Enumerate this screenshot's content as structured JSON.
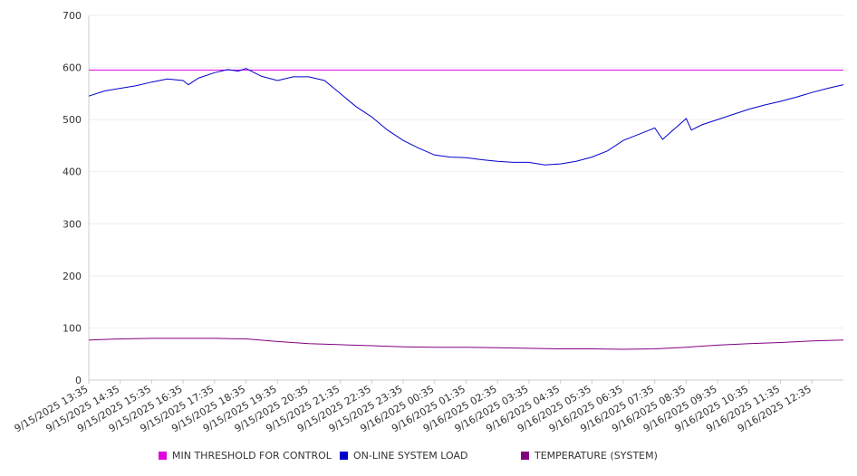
{
  "chart_data": {
    "type": "line",
    "title": "",
    "xlabel": "",
    "ylabel": "",
    "ylim": [
      0,
      700
    ],
    "yticks": [
      0,
      100,
      200,
      300,
      400,
      500,
      600,
      700
    ],
    "grid": true,
    "legend_position": "bottom",
    "x_tick_labels": [
      "9/15/2025 13:35",
      "9/15/2025 14:35",
      "9/15/2025 15:35",
      "9/15/2025 16:35",
      "9/15/2025 17:35",
      "9/15/2025 18:35",
      "9/15/2025 19:35",
      "9/15/2025 20:35",
      "9/15/2025 21:35",
      "9/15/2025 22:35",
      "9/15/2025 23:35",
      "9/16/2025 00:35",
      "9/16/2025 01:35",
      "9/16/2025 02:35",
      "9/16/2025 03:35",
      "9/16/2025 04:35",
      "9/16/2025 05:35",
      "9/16/2025 06:35",
      "9/16/2025 07:35",
      "9/16/2025 08:35",
      "9/16/2025 09:35",
      "9/16/2025 10:35",
      "9/16/2025 11:35",
      "9/16/2025 12:35"
    ],
    "x_start": "9/15/2025 13:35",
    "x_end": "9/16/2025 13:35",
    "series": [
      {
        "name": "MIN THRESHOLD FOR CONTROL",
        "color": "#e000e0",
        "x": [
          "9/15/2025 13:35",
          "9/16/2025 13:35"
        ],
        "values": [
          595,
          595
        ]
      },
      {
        "name": "ON-LINE SYSTEM LOAD",
        "color": "#0000cc",
        "x": [
          "9/15/2025 13:35",
          "9/15/2025 14:05",
          "9/15/2025 14:35",
          "9/15/2025 15:05",
          "9/15/2025 15:35",
          "9/15/2025 16:05",
          "9/15/2025 16:35",
          "9/15/2025 16:45",
          "9/15/2025 17:05",
          "9/15/2025 17:35",
          "9/15/2025 18:00",
          "9/15/2025 18:20",
          "9/15/2025 18:35",
          "9/15/2025 19:05",
          "9/15/2025 19:35",
          "9/15/2025 20:05",
          "9/15/2025 20:35",
          "9/15/2025 21:05",
          "9/15/2025 21:35",
          "9/15/2025 22:05",
          "9/15/2025 22:35",
          "9/15/2025 23:05",
          "9/15/2025 23:35",
          "9/16/2025 00:05",
          "9/16/2025 00:35",
          "9/16/2025 01:05",
          "9/16/2025 01:35",
          "9/16/2025 02:05",
          "9/16/2025 02:35",
          "9/16/2025 03:05",
          "9/16/2025 03:35",
          "9/16/2025 04:05",
          "9/16/2025 04:35",
          "9/16/2025 05:05",
          "9/16/2025 05:35",
          "9/16/2025 06:05",
          "9/16/2025 06:35",
          "9/16/2025 07:05",
          "9/16/2025 07:25",
          "9/16/2025 07:35",
          "9/16/2025 07:50",
          "9/16/2025 08:35",
          "9/16/2025 08:45",
          "9/16/2025 09:05",
          "9/16/2025 09:35",
          "9/16/2025 10:05",
          "9/16/2025 10:35",
          "9/16/2025 11:05",
          "9/16/2025 11:35",
          "9/16/2025 12:05",
          "9/16/2025 12:35",
          "9/16/2025 13:05",
          "9/16/2025 13:35"
        ],
        "values": [
          545,
          555,
          560,
          565,
          572,
          578,
          575,
          567,
          580,
          590,
          596,
          593,
          598,
          583,
          575,
          582,
          582,
          575,
          550,
          525,
          505,
          480,
          460,
          445,
          432,
          428,
          427,
          423,
          420,
          418,
          418,
          413,
          415,
          420,
          428,
          440,
          460,
          472,
          480,
          484,
          462,
          502,
          480,
          490,
          500,
          510,
          520,
          528,
          535,
          543,
          552,
          560,
          567
        ]
      },
      {
        "name": "TEMPERATURE (SYSTEM)",
        "color": "#800080",
        "x": [
          "9/15/2025 13:35",
          "9/15/2025 14:35",
          "9/15/2025 15:35",
          "9/15/2025 16:35",
          "9/15/2025 17:35",
          "9/15/2025 18:35",
          "9/15/2025 19:35",
          "9/15/2025 20:35",
          "9/15/2025 21:35",
          "9/15/2025 22:35",
          "9/15/2025 23:35",
          "9/16/2025 00:35",
          "9/16/2025 01:35",
          "9/16/2025 02:35",
          "9/16/2025 03:35",
          "9/16/2025 04:35",
          "9/16/2025 05:35",
          "9/16/2025 06:35",
          "9/16/2025 07:35",
          "9/16/2025 08:35",
          "9/16/2025 09:35",
          "9/16/2025 10:35",
          "9/16/2025 11:35",
          "9/16/2025 12:35",
          "9/16/2025 13:35"
        ],
        "values": [
          77,
          79,
          80,
          80,
          80,
          79,
          74,
          70,
          68,
          66,
          64,
          63,
          63,
          62,
          61,
          60,
          60,
          59,
          60,
          63,
          67,
          70,
          72,
          75,
          77
        ]
      }
    ]
  }
}
